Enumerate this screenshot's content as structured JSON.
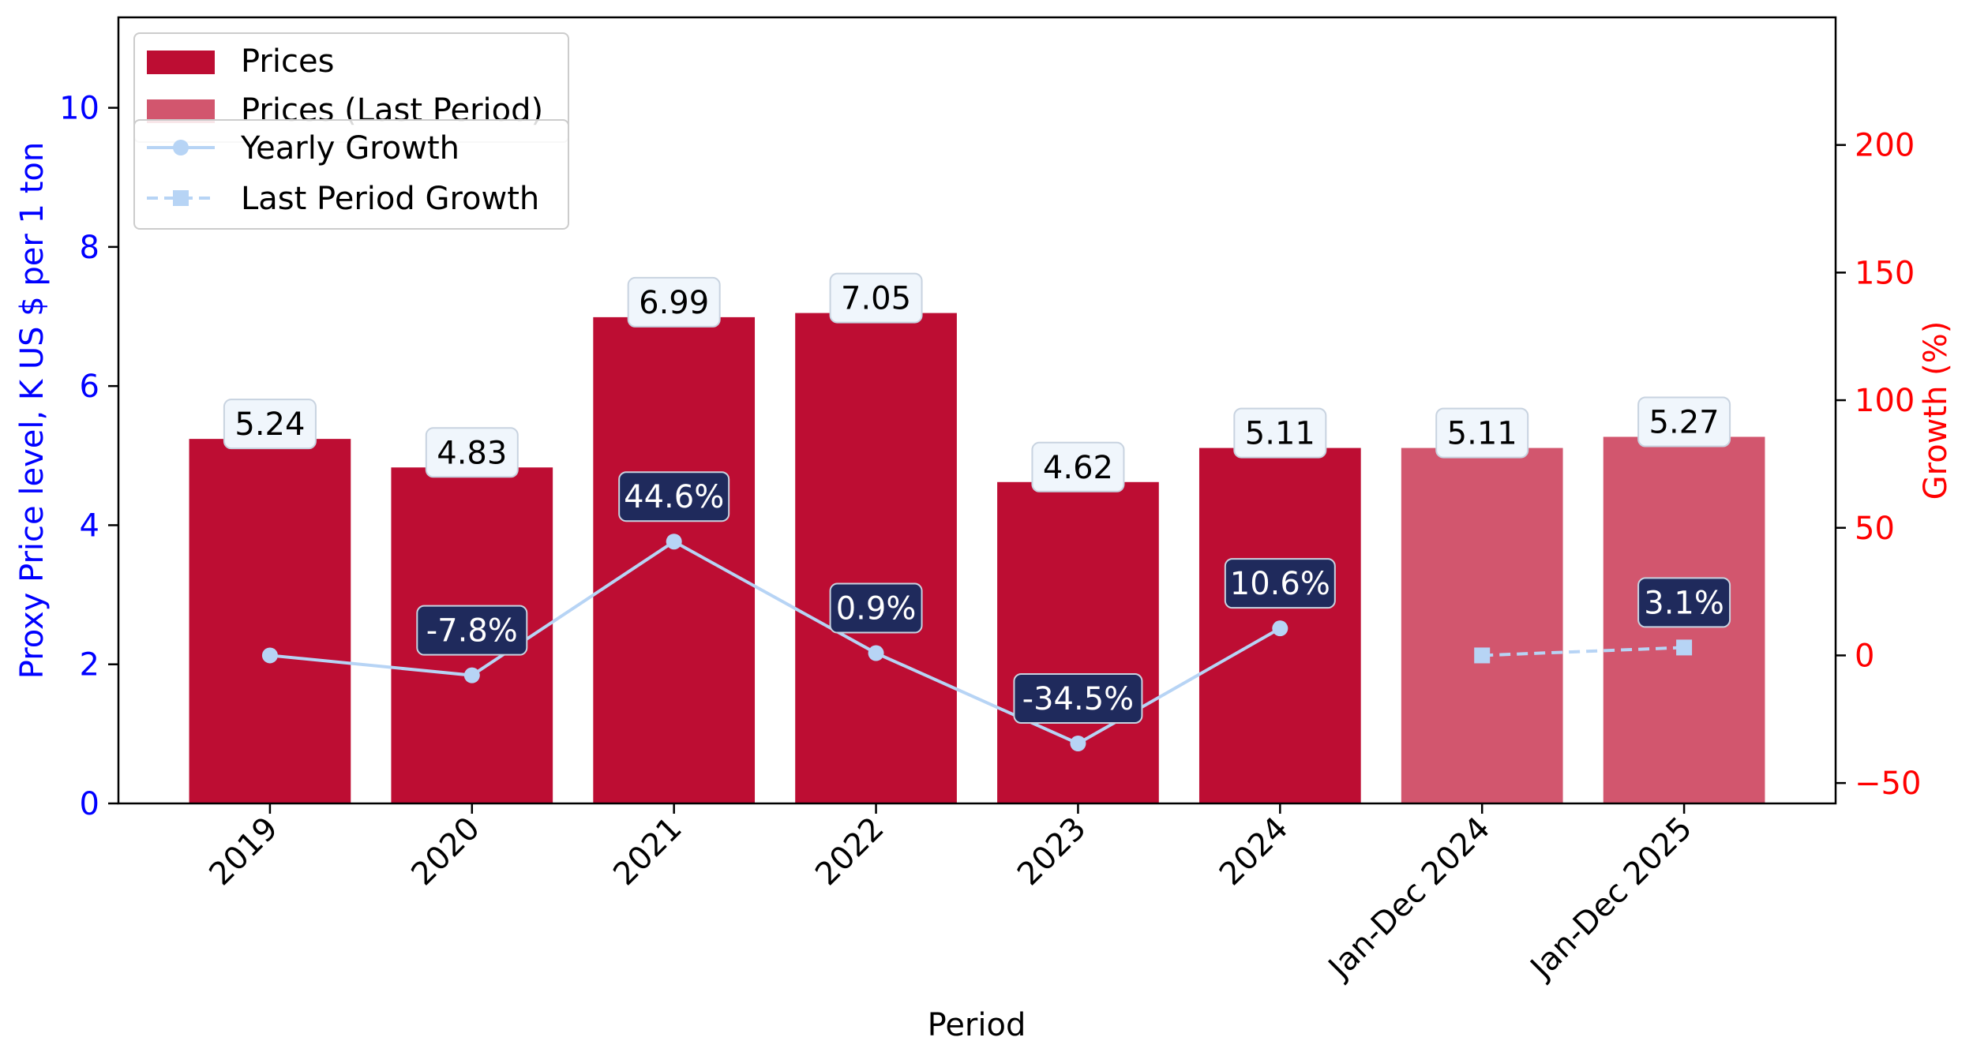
{
  "chart_data": {
    "type": "bar",
    "xlabel": "Period",
    "ylabel_left": "Proxy Price level, K US $ per 1 ton",
    "ylabel_right": "Growth (%)",
    "categories": [
      "2019",
      "2020",
      "2021",
      "2022",
      "2023",
      "2024",
      "Jan-Dec 2024",
      "Jan-Dec 2025"
    ],
    "ylim_left": [
      0,
      11.3
    ],
    "yticks_left": [
      0,
      2,
      4,
      6,
      8,
      10
    ],
    "ylim_right": [
      -58,
      250
    ],
    "yticks_right": [
      -50,
      0,
      50,
      100,
      150,
      200
    ],
    "series": [
      {
        "name": "Prices",
        "kind": "bar",
        "axis": "left",
        "color": "#bd0d33",
        "values": [
          5.24,
          4.83,
          6.99,
          7.05,
          4.62,
          5.11,
          null,
          null
        ],
        "labels": [
          "5.24",
          "4.83",
          "6.99",
          "7.05",
          "4.62",
          "5.11",
          "",
          ""
        ]
      },
      {
        "name": "Prices (Last Period)",
        "kind": "bar",
        "axis": "left",
        "color": "#d2566e",
        "values": [
          null,
          null,
          null,
          null,
          null,
          null,
          5.11,
          5.27
        ],
        "labels": [
          "",
          "",
          "",
          "",
          "",
          "",
          "5.11",
          "5.27"
        ]
      },
      {
        "name": "Yearly Growth",
        "kind": "line",
        "axis": "right",
        "color": "#b7d4f5",
        "marker": "circle",
        "dash": "solid",
        "values": [
          0,
          -7.8,
          44.6,
          0.9,
          -34.5,
          10.6,
          null,
          null
        ],
        "labels": [
          "",
          "-7.8%",
          "44.6%",
          "0.9%",
          "-34.5%",
          "10.6%",
          "",
          ""
        ]
      },
      {
        "name": "Last Period Growth",
        "kind": "line",
        "axis": "right",
        "color": "#b7d4f5",
        "marker": "square",
        "dash": "dashed",
        "values": [
          null,
          null,
          null,
          null,
          null,
          null,
          0,
          3.1
        ],
        "labels": [
          "",
          "",
          "",
          "",
          "",
          "",
          "",
          "3.1%"
        ]
      }
    ],
    "legend": "upper-left",
    "grid": false,
    "colors": {
      "left_axis": "#0000ff",
      "right_axis": "#ff0000",
      "value_label_bg": "#f0f6fc",
      "growth_label_bg": "#1f2a5c"
    }
  }
}
